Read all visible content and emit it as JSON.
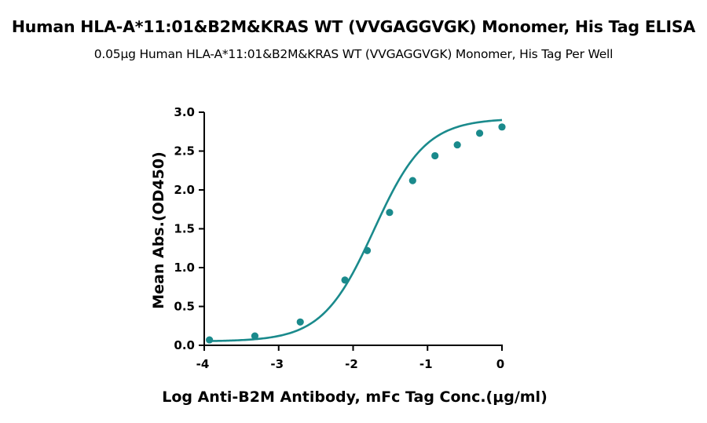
{
  "chart_data": {
    "type": "scatter",
    "title": "Human HLA-A*11:01&B2M&KRAS WT (VVGAGGVGK) Monomer, His Tag ELISA",
    "subtitle": "0.05μg Human HLA-A*11:01&B2M&KRAS WT (VVGAGGVGK) Monomer, His Tag Per Well",
    "xlabel": "Log Anti-B2M Antibody, mFc Tag Conc.(μg/ml)",
    "ylabel": "Mean Abs.(OD450)",
    "xlim": [
      -4,
      0
    ],
    "ylim": [
      0,
      3.0
    ],
    "x_ticks": [
      "-4",
      "-3",
      "-2",
      "-1",
      "0"
    ],
    "y_ticks": [
      "0.0",
      "0.5",
      "1.0",
      "1.5",
      "2.0",
      "2.5",
      "3.0"
    ],
    "color": "#1a8a8c",
    "grid": false,
    "series": [
      {
        "points": [
          {
            "x": -3.93,
            "y": 0.07
          },
          {
            "x": -3.32,
            "y": 0.12
          },
          {
            "x": -2.71,
            "y": 0.3
          },
          {
            "x": -2.11,
            "y": 0.84
          },
          {
            "x": -1.81,
            "y": 1.22
          },
          {
            "x": -1.51,
            "y": 1.71
          },
          {
            "x": -1.2,
            "y": 2.12
          },
          {
            "x": -0.9,
            "y": 2.44
          },
          {
            "x": -0.6,
            "y": 2.58
          },
          {
            "x": -0.3,
            "y": 2.73
          },
          {
            "x": 0.0,
            "y": 2.81
          }
        ],
        "fit_curve": "sigmoidal"
      }
    ]
  }
}
